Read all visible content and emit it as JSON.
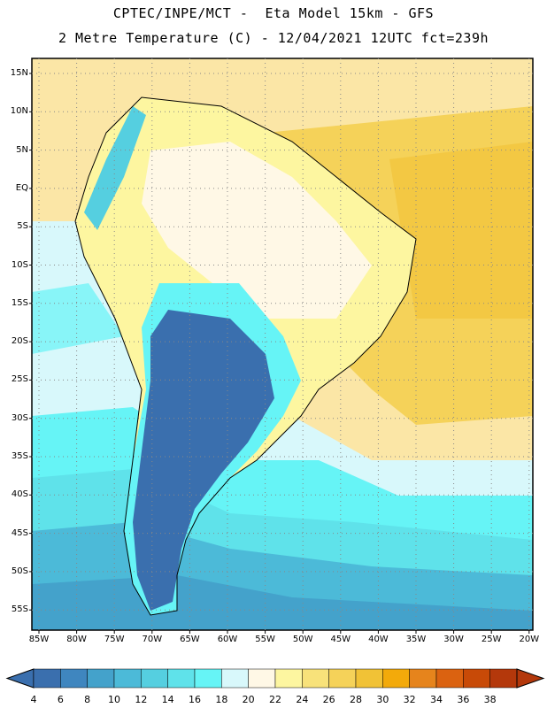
{
  "header": {
    "line1": "CPTEC/INPE/MCT -  Eta Model 15km - GFS",
    "line2": "2 Metre Temperature (C) - 12/04/2021 12UTC fct=239h"
  },
  "map": {
    "lat_labels": [
      "15N",
      "10N",
      "5N",
      "EQ",
      "5S",
      "10S",
      "15S",
      "20S",
      "25S",
      "30S",
      "35S",
      "40S",
      "45S",
      "50S",
      "55S"
    ],
    "lon_labels": [
      "85W",
      "80W",
      "75W",
      "70W",
      "65W",
      "60W",
      "55W",
      "50W",
      "45W",
      "40W",
      "35W",
      "30W",
      "25W",
      "20W"
    ]
  },
  "colorbar": {
    "labels": [
      "4",
      "6",
      "8",
      "10",
      "12",
      "14",
      "16",
      "18",
      "20",
      "22",
      "24",
      "26",
      "28",
      "30",
      "32",
      "34",
      "36",
      "38"
    ],
    "colors": [
      "#3a6fae",
      "#3f86bf",
      "#44a2cb",
      "#4cbad8",
      "#55cfe0",
      "#5fe2ea",
      "#66f4f6",
      "#d8f8fb",
      "#fff8e6",
      "#fdf6a0",
      "#f8e27a",
      "#f5d259",
      "#f1c236",
      "#f3aa0a",
      "#e6841c",
      "#db6210",
      "#c84a07",
      "#b4380b"
    ]
  }
}
